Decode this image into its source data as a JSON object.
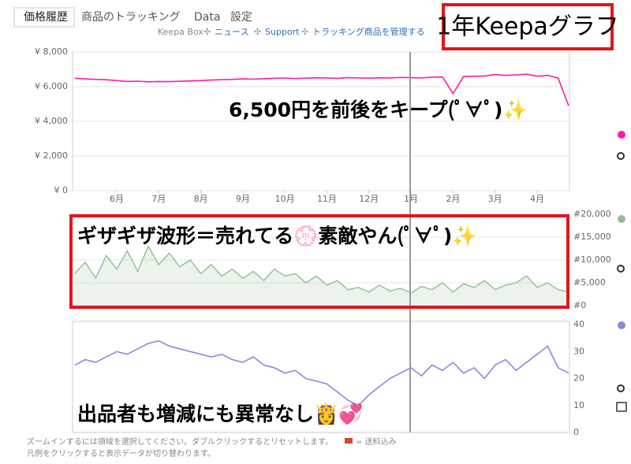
{
  "tabs": [
    "価格履歴",
    "商品のトラッキング",
    "Data",
    "設定"
  ],
  "links": [
    "Keepa Box",
    "ニュース",
    "Support",
    "トラッキング商品を管理する"
  ],
  "annotations": [
    "1年Keepaグラフ",
    "6,500円を前後をキープ(ﾟ∀ﾟ)✨",
    "ギザギザ波形＝売れてる💮素敵やん(ﾟ∀ﾟ)✨",
    "出品者も増減にも異常なし👸💞"
  ],
  "footer": [
    "ズームインするには領域を選択してください。ダブルクリックするとリセットします。",
    "= 送料込み",
    "凡例をクリックすると表示データが切り替わります。"
  ],
  "chart_data": [
    {
      "type": "line",
      "x": [
        5,
        5.25,
        5.5,
        5.75,
        6,
        6.25,
        6.5,
        6.75,
        7,
        7.25,
        7.5,
        7.75,
        8,
        8.25,
        8.5,
        8.75,
        9,
        9.25,
        9.5,
        9.75,
        10,
        10.25,
        10.5,
        10.75,
        11,
        11.25,
        11.5,
        11.75,
        12,
        12.25,
        12.5,
        12.75,
        13,
        13.25,
        13.5,
        13.75,
        14,
        14.25,
        14.5,
        14.75,
        15,
        15.25,
        15.5,
        15.75,
        16,
        16.25,
        16.5,
        16.75
      ],
      "series": [
        {
          "color": "#ff1aa8",
          "values": [
            6480,
            6450,
            6420,
            6400,
            6350,
            6300,
            6320,
            6280,
            6300,
            6290,
            6310,
            6330,
            6350,
            6380,
            6400,
            6420,
            6450,
            6430,
            6460,
            6480,
            6500,
            6470,
            6490,
            6510,
            6500,
            6480,
            6520,
            6500,
            6490,
            6510,
            6500,
            6530,
            6520,
            6500,
            6550,
            6560,
            5600,
            6580,
            6600,
            6620,
            6700,
            6650,
            6680,
            6720,
            6600,
            6650,
            6500,
            4900
          ]
        }
      ],
      "xlim": [
        4.95,
        16.77
      ],
      "xticks": [
        {
          "value": 6,
          "label": "6月"
        },
        {
          "value": 7,
          "label": "7月"
        },
        {
          "value": 8,
          "label": "8月"
        },
        {
          "value": 9,
          "label": "9月"
        },
        {
          "value": 10,
          "label": "10月"
        },
        {
          "value": 11,
          "label": "11月"
        },
        {
          "value": 12,
          "label": "12月"
        },
        {
          "value": 13,
          "label": "1月"
        },
        {
          "value": 14,
          "label": "2月"
        },
        {
          "value": 15,
          "label": "3月"
        },
        {
          "value": 16,
          "label": "4月"
        }
      ],
      "ylim": [
        0,
        8000
      ],
      "yticks": [
        {
          "value": 0,
          "label": "¥ 0"
        },
        {
          "value": 2000,
          "label": "¥ 2,000"
        },
        {
          "value": 4000,
          "label": "¥ 4,000"
        },
        {
          "value": 6000,
          "label": "¥ 6,000"
        },
        {
          "value": 8000,
          "label": "¥ 8,000"
        }
      ],
      "grid": true
    },
    {
      "type": "area",
      "x": [
        5,
        5.25,
        5.5,
        5.75,
        6,
        6.25,
        6.5,
        6.75,
        7,
        7.25,
        7.5,
        7.75,
        8,
        8.25,
        8.5,
        8.75,
        9,
        9.25,
        9.5,
        9.75,
        10,
        10.25,
        10.5,
        10.75,
        11,
        11.25,
        11.5,
        11.75,
        12,
        12.25,
        12.5,
        12.75,
        13,
        13.25,
        13.5,
        13.75,
        14,
        14.25,
        14.5,
        14.75,
        15,
        15.25,
        15.5,
        15.75,
        16,
        16.25,
        16.5,
        16.75
      ],
      "series": [
        {
          "color": "#8fbf8f",
          "values": [
            7000,
            9500,
            6000,
            11000,
            8000,
            12000,
            7500,
            13000,
            9000,
            11500,
            8500,
            10000,
            7000,
            9000,
            6500,
            8000,
            6000,
            7500,
            5500,
            8000,
            6500,
            7000,
            5000,
            6500,
            4500,
            5500,
            3500,
            4000,
            3000,
            4500,
            3200,
            3800,
            2800,
            4200,
            3500,
            5000,
            3000,
            4800,
            4000,
            5500,
            3500,
            4500,
            5000,
            6500,
            4000,
            5000,
            3500,
            3000
          ]
        }
      ],
      "xlim": [
        4.95,
        16.77
      ],
      "ylim": [
        0,
        20000
      ],
      "yticks": [
        {
          "value": 0,
          "label": "#0"
        },
        {
          "value": 5000,
          "label": "#5,000"
        },
        {
          "value": 10000,
          "label": "#10,000"
        },
        {
          "value": 15000,
          "label": "#15,000"
        },
        {
          "value": 20000,
          "label": "#20,000"
        }
      ],
      "grid": true
    },
    {
      "type": "line",
      "x": [
        5,
        5.25,
        5.5,
        5.75,
        6,
        6.25,
        6.5,
        6.75,
        7,
        7.25,
        7.5,
        7.75,
        8,
        8.25,
        8.5,
        8.75,
        9,
        9.25,
        9.5,
        9.75,
        10,
        10.25,
        10.5,
        10.75,
        11,
        11.25,
        11.5,
        11.75,
        12,
        12.25,
        12.5,
        12.75,
        13,
        13.25,
        13.5,
        13.75,
        14,
        14.25,
        14.5,
        14.75,
        15,
        15.25,
        15.5,
        15.75,
        16,
        16.25,
        16.5,
        16.75
      ],
      "series": [
        {
          "color": "#8888dd",
          "values": [
            25,
            27,
            26,
            28,
            30,
            29,
            31,
            33,
            34,
            32,
            31,
            30,
            29,
            28,
            29,
            27,
            26,
            28,
            25,
            24,
            22,
            23,
            20,
            19,
            18,
            15,
            12,
            10,
            14,
            17,
            20,
            22,
            24,
            21,
            25,
            23,
            26,
            22,
            24,
            20,
            25,
            27,
            23,
            26,
            29,
            32,
            24,
            22
          ]
        }
      ],
      "xlim": [
        4.95,
        16.77
      ],
      "ylim": [
        0,
        40
      ],
      "yticks": [
        0,
        10,
        20,
        30,
        40
      ],
      "grid": false
    }
  ]
}
